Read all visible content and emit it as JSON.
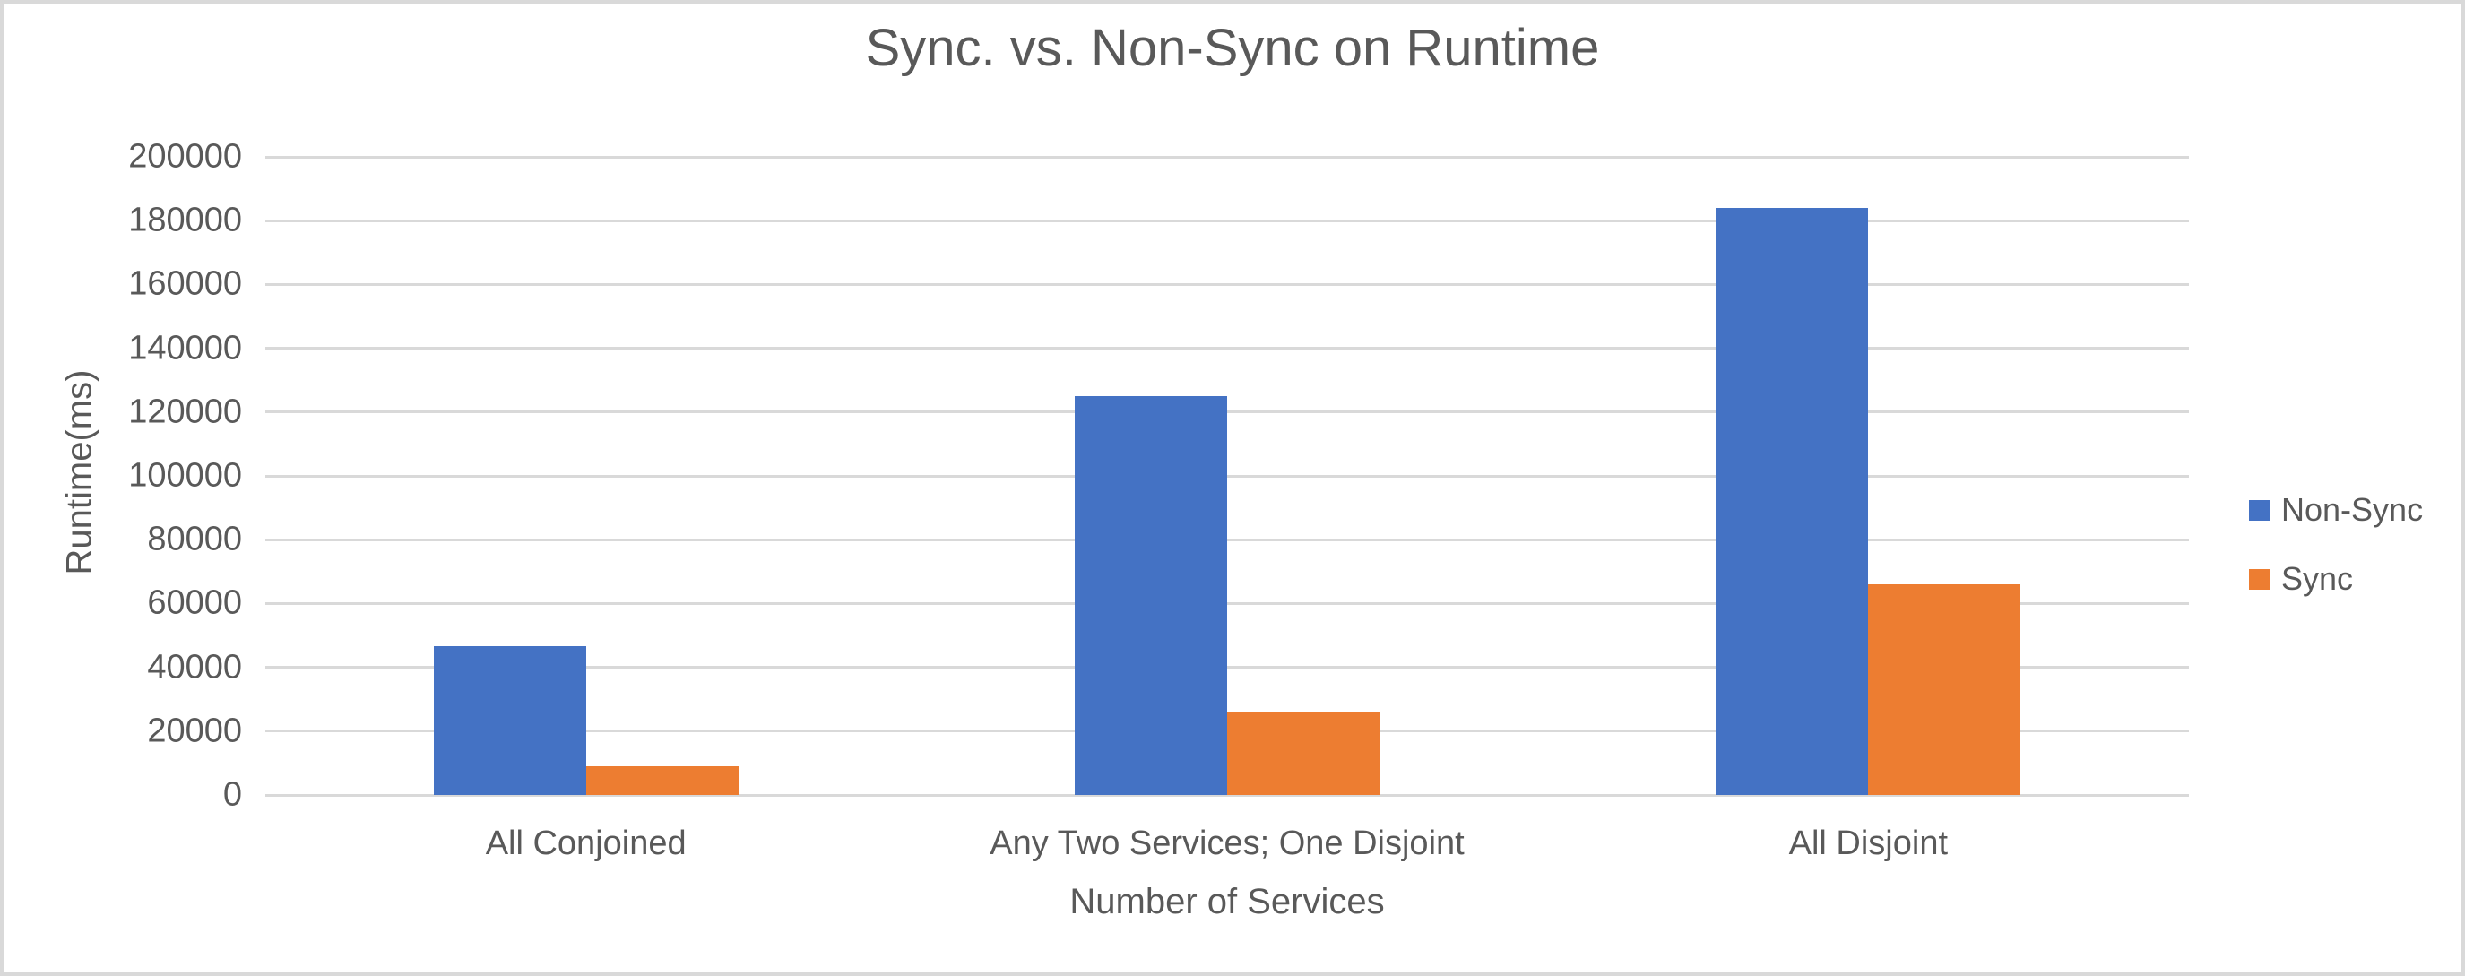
{
  "chart_data": {
    "type": "bar",
    "title": "Sync. vs. Non-Sync on Runtime",
    "xlabel": "Number of Services",
    "ylabel": "Runtime(ms)",
    "categories": [
      "All Conjoined",
      "Any Two Services; One Disjoint",
      "All Disjoint"
    ],
    "series": [
      {
        "name": "Non-Sync",
        "color": "#4472C4",
        "values": [
          46500,
          125000,
          184000
        ]
      },
      {
        "name": "Sync",
        "color": "#ED7D31",
        "values": [
          9000,
          26000,
          66000
        ]
      }
    ],
    "ylim": [
      0,
      200000
    ],
    "yticks": [
      0,
      20000,
      40000,
      60000,
      80000,
      100000,
      120000,
      140000,
      160000,
      180000,
      200000
    ],
    "grid": "horizontal",
    "legend_position": "right",
    "gridline_color": "#D9D9D9",
    "text_color": "#595959",
    "background_color": "#FFFFFF"
  }
}
